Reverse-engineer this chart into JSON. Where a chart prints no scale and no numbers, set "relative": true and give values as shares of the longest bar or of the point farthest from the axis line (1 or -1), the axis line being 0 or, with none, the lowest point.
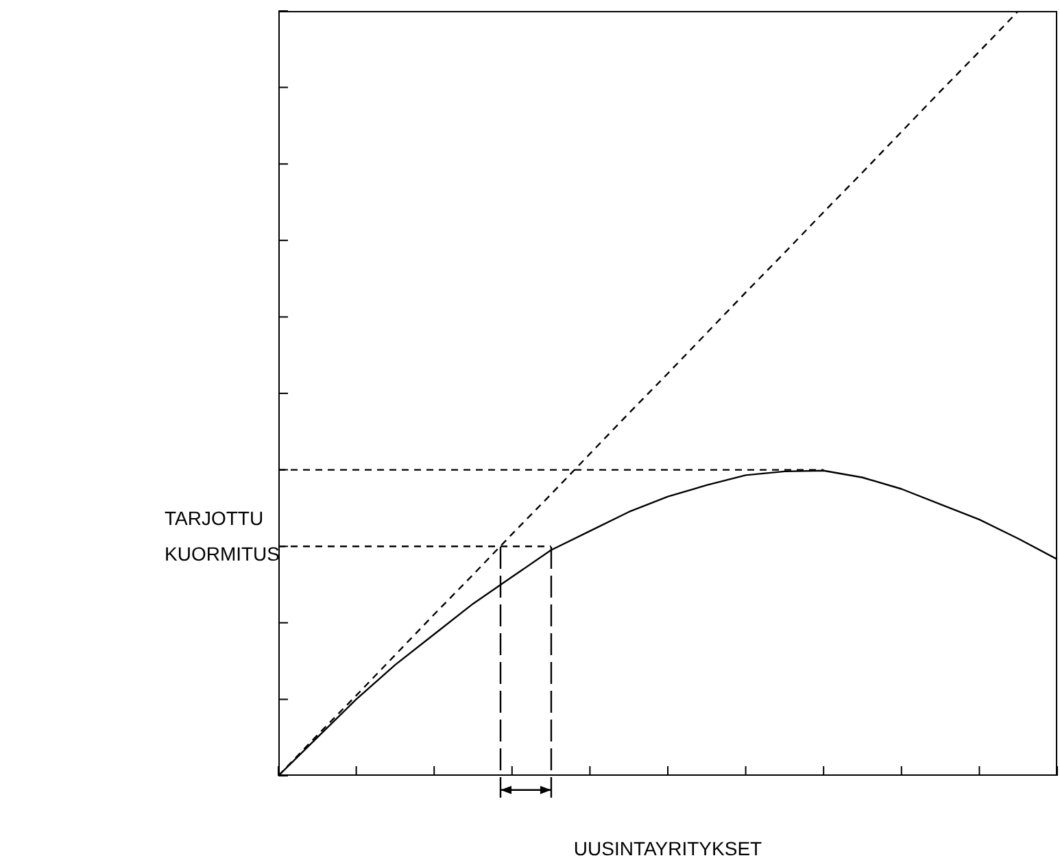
{
  "chart_data": {
    "type": "line",
    "relative": true,
    "xlabel": "UUSINTAYRITYKSET",
    "ylabel": "TARJOTTU KUORMITUS",
    "categories": [
      null,
      null,
      null,
      null,
      null,
      null,
      null,
      null,
      null,
      null,
      null,
      null,
      null,
      null,
      null,
      null,
      null,
      null,
      null,
      null,
      null
    ],
    "tick_labels": false,
    "legend": false,
    "marker": "none",
    "series": [
      {
        "color": "#000000",
        "values": [
          0,
          0.05,
          0.1,
          0.145,
          0.185,
          0.225,
          0.26,
          0.295,
          0.32,
          0.345,
          0.365,
          0.38,
          0.393,
          0.398,
          0.399,
          0.39,
          0.375,
          0.355,
          0.335,
          0.31,
          0.283
        ]
      },
      {
        "color": "#000000",
        "line_style": "dashed",
        "values": [
          0,
          0.053,
          0.105,
          0.158,
          0.211,
          0.263,
          0.316,
          0.368,
          0.421,
          0.474,
          0.526,
          0.579,
          0.632,
          0.684,
          0.737,
          0.789,
          0.842,
          0.895,
          0.947,
          1,
          null
        ]
      },
      {
        "color": "#000000",
        "line_style": "dashed",
        "values": [
          0.4,
          0.4,
          0.4,
          0.4,
          0.4,
          0.4,
          0.4,
          0.4,
          0.4,
          0.4,
          0.4,
          0.4,
          0.4,
          0.4,
          0.4,
          null,
          null,
          null,
          null,
          null,
          null
        ]
      },
      {
        "color": "#000000",
        "line_style": "dashed",
        "values": [
          0.3,
          0.3,
          0.3,
          0.3,
          0.3,
          0.3,
          0.3,
          0.3,
          null,
          null,
          null,
          null,
          null,
          null,
          null,
          null,
          null,
          null,
          null,
          null,
          null
        ]
      }
    ]
  }
}
